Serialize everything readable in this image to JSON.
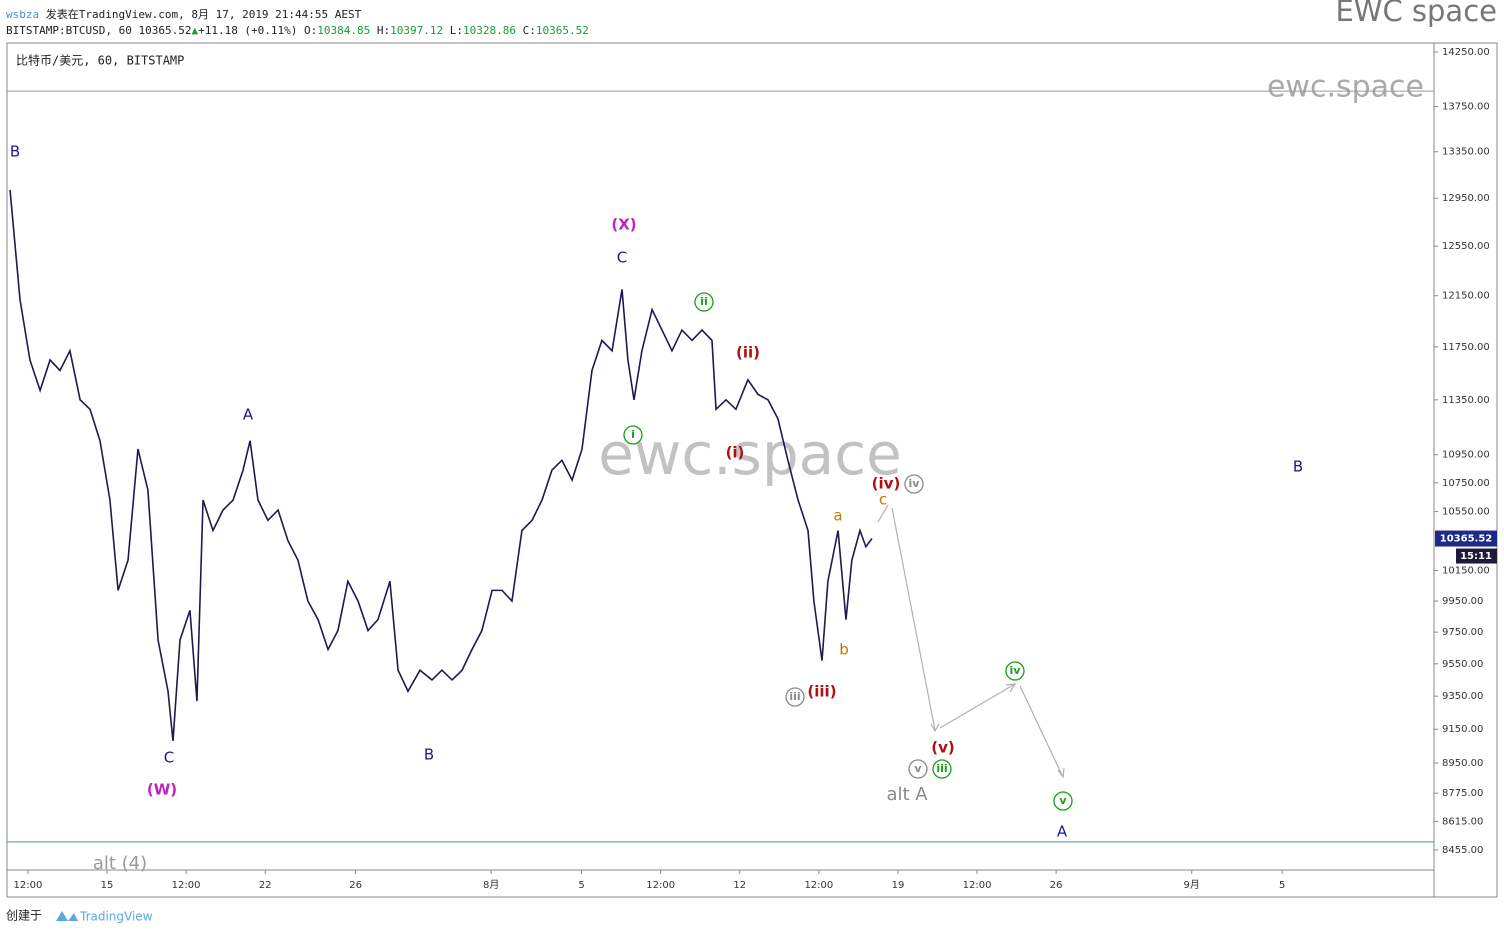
{
  "chart_data": {
    "type": "line",
    "header": {
      "user": "wsbza",
      "published": "发表在TradingView.com, 8月 17, 2019 21:44:55 AEST",
      "symbol": "BITSTAMP:BTCUSD, 60",
      "price": 10365.52,
      "change": "+11.18 (+0.11%)",
      "open_label": "O:",
      "open": 10384.85,
      "high_label": "H:",
      "high": 10397.12,
      "low_label": "L:",
      "low": 10328.86,
      "close_label": "C:",
      "close": 10365.52
    },
    "brand": "EWC space",
    "title": "比特币/美元, 60, BITSTAMP",
    "watermark": "ewc.space",
    "footer": {
      "created": "创建于",
      "logo": "TradingView"
    },
    "last_price": 10365.52,
    "countdown": "15:11",
    "log_scale": true,
    "color": "#1c1a4f",
    "x": [
      10.71,
      11.15,
      11.59,
      12.04,
      12.48,
      12.92,
      13.36,
      13.81,
      14.25,
      14.69,
      15.13,
      15.49,
      15.93,
      16.37,
      16.81,
      17.26,
      17.7,
      17.92,
      18.23,
      18.67,
      18.98,
      19.25,
      19.69,
      20.13,
      20.58,
      21.02,
      21.33,
      21.68,
      22.12,
      22.57,
      23.01,
      23.45,
      23.89,
      24.34,
      24.78,
      25.22,
      25.66,
      26.11,
      26.55,
      26.99,
      27.52,
      27.88,
      28.32,
      28.85,
      29.38,
      29.82,
      30.27,
      30.71,
      31.15,
      31.59,
      32.04,
      32.48,
      32.92,
      33.36,
      33.81,
      34.25,
      34.69,
      35.13,
      35.58,
      36.02,
      36.46,
      36.9,
      37.35,
      37.79,
      38.05,
      38.32,
      38.67,
      39.12,
      39.56,
      40.0,
      40.44,
      40.89,
      41.33,
      41.77,
      41.95,
      42.39,
      42.83,
      43.36,
      43.81,
      44.25,
      44.69,
      45.13,
      45.58,
      46.02,
      46.28,
      46.64,
      46.9,
      47.35,
      47.7,
      47.96,
      48.32,
      48.58,
      48.85
    ],
    "values": [
      13020,
      12120,
      11650,
      11420,
      11650,
      11570,
      11720,
      11350,
      11280,
      11050,
      10630,
      10020,
      10220,
      10990,
      10700,
      9700,
      9380,
      9080,
      9700,
      9890,
      9320,
      10630,
      10420,
      10560,
      10630,
      10840,
      11050,
      10630,
      10490,
      10560,
      10350,
      10220,
      9950,
      9830,
      9640,
      9760,
      10080,
      9950,
      9760,
      9830,
      10080,
      9510,
      9380,
      9510,
      9450,
      9510,
      9450,
      9510,
      9640,
      9760,
      10020,
      10020,
      9950,
      10420,
      10490,
      10630,
      10840,
      10910,
      10770,
      10990,
      11570,
      11800,
      11720,
      12200,
      11650,
      11350,
      11720,
      12040,
      11880,
      11720,
      11880,
      11800,
      11880,
      11800,
      11280,
      11350,
      11280,
      11500,
      11390,
      11350,
      11210,
      10910,
      10630,
      10420,
      9950,
      9570,
      10080,
      10420,
      9830,
      10220,
      10420,
      10310,
      10365.52
    ],
    "xlim": [
      10.575,
      73.72
    ],
    "xticks": [
      {
        "value": 11.5,
        "label": "12:00"
      },
      15,
      {
        "value": 18.5,
        "label": "12:00"
      },
      22,
      26,
      {
        "value": 32,
        "label": "8月"
      },
      {
        "value": 36,
        "label": "5"
      },
      {
        "value": 39.5,
        "label": "12:00"
      },
      {
        "value": 43,
        "label": "12"
      },
      {
        "value": 46.5,
        "label": "12:00"
      },
      {
        "value": 50,
        "label": "19"
      },
      {
        "value": 53.5,
        "label": "12:00"
      },
      {
        "value": 57,
        "label": "26"
      },
      {
        "value": 63,
        "label": "9月"
      },
      {
        "value": 67,
        "label": "5"
      }
    ],
    "ylim": [
      8345,
      14334
    ],
    "yticks": [
      {
        "value": 14250,
        "label": "14250.00"
      },
      {
        "value": 13750,
        "label": "13750.00"
      },
      {
        "value": 13350,
        "label": "13350.00"
      },
      {
        "value": 12950,
        "label": "12950.00"
      },
      {
        "value": 12550,
        "label": "12550.00"
      },
      {
        "value": 12150,
        "label": "12150.00"
      },
      {
        "value": 11750,
        "label": "11750.00"
      },
      {
        "value": 11350,
        "label": "11350.00"
      },
      {
        "value": 10950,
        "label": "10950.00"
      },
      {
        "value": 10750,
        "label": "10750.00"
      },
      {
        "value": 10550,
        "label": "10550.00"
      },
      {
        "value": 10150,
        "label": "10150.00"
      },
      {
        "value": 9950,
        "label": "9950.00"
      },
      {
        "value": 9750,
        "label": "9750.00"
      },
      {
        "value": 9550,
        "label": "9550.00"
      },
      {
        "value": 9350,
        "label": "9350.00"
      },
      {
        "value": 9150,
        "label": "9150.00"
      },
      {
        "value": 8950,
        "label": "8950.00"
      },
      {
        "value": 8775,
        "label": "8775.00"
      },
      {
        "value": 8615,
        "label": "8615.00"
      },
      {
        "value": 8455,
        "label": "8455.00"
      }
    ],
    "hlines": [
      {
        "value": 13890,
        "color": "#9a9a9a"
      },
      {
        "value": 8500,
        "color": "#4a9a9a"
      }
    ],
    "annotations": [
      {
        "text": "B",
        "color": "#1a1a8a"
      },
      {
        "text": "(X)",
        "color": "#c020c0"
      },
      {
        "text": "C",
        "color": "#1a1a8a"
      },
      {
        "text": "A",
        "color": "#1a1a8a"
      },
      {
        "text": "C",
        "color": "#1a1a8a"
      },
      {
        "text": "(W)",
        "color": "#c020c0"
      },
      {
        "text": "B",
        "color": "#1a1a8a"
      },
      {
        "text": "ii",
        "color": "#1aa01a",
        "circle": true
      },
      {
        "text": "(ii)",
        "color": "#b01010"
      },
      {
        "text": "i",
        "color": "#1aa01a",
        "circle": true
      },
      {
        "text": "(i)",
        "color": "#b01010"
      },
      {
        "text": "(iv)",
        "color": "#b01010"
      },
      {
        "text": "iv",
        "color": "#8a8a8a",
        "circle": true
      },
      {
        "text": "c",
        "color": "#c07a00"
      },
      {
        "text": "a",
        "color": "#c07a00"
      },
      {
        "text": "b",
        "color": "#c07a00"
      },
      {
        "text": "iii",
        "color": "#8a8a8a",
        "circle": true
      },
      {
        "text": "(iii)",
        "color": "#b01010"
      },
      {
        "text": "iv",
        "color": "#1aa01a",
        "circle": true
      },
      {
        "text": "(v)",
        "color": "#b01010"
      },
      {
        "text": "v",
        "color": "#8a8a8a",
        "circle": true
      },
      {
        "text": "iii",
        "color": "#1aa01a",
        "circle": true
      },
      {
        "text": "alt A",
        "color": "#8a8a8a"
      },
      {
        "text": "v",
        "color": "#1aa01a",
        "circle": true
      },
      {
        "text": "A",
        "color": "#1a1a8a"
      },
      {
        "text": "B",
        "color": "#1a1a8a"
      },
      {
        "text": "alt (4)",
        "color": "#9a9a9a"
      }
    ]
  }
}
